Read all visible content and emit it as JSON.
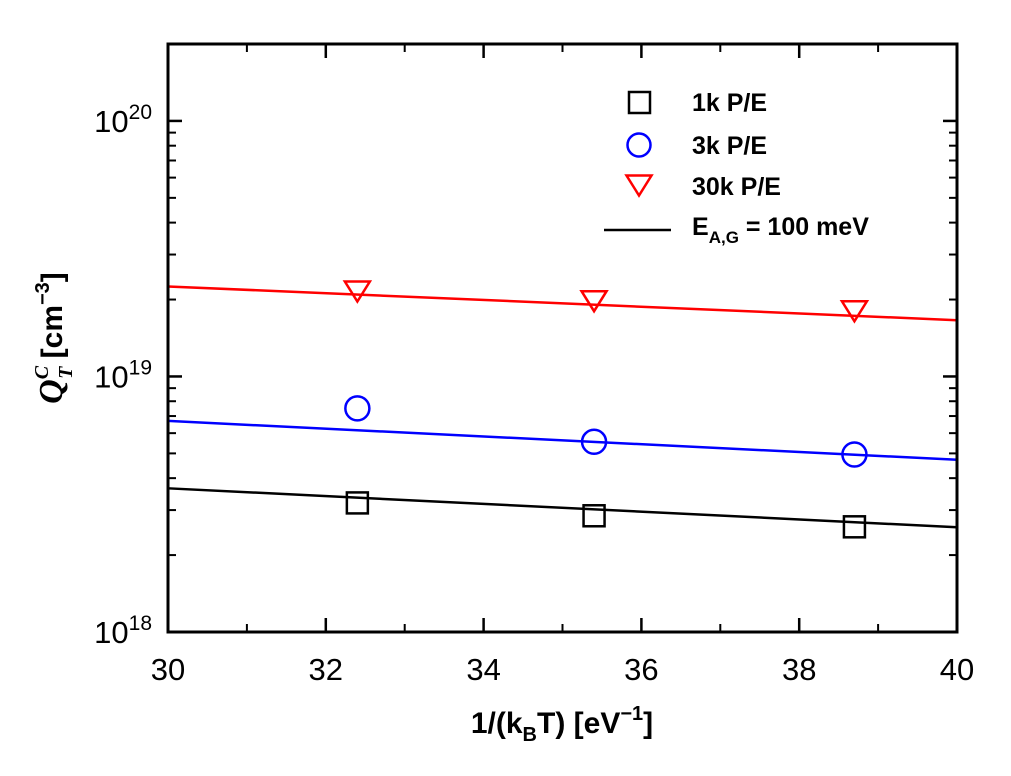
{
  "chart_data": {
    "type": "scatter",
    "title": "",
    "xlabel": {
      "main": "1/(k",
      "sub": "B",
      "after": "T) [eV",
      "sup": "−1",
      "close": "]"
    },
    "ylabel": {
      "symbol": "Q",
      "sup": "C",
      "sub": "T",
      "unit_open": " [cm",
      "unit_sup": "−3",
      "unit_close": "]"
    },
    "xlim": [
      30,
      40
    ],
    "ylim": [
      1e+18,
      2e+20
    ],
    "yscale": "log",
    "x_ticks": [
      30,
      32,
      34,
      36,
      38,
      40
    ],
    "x_tick_labels": [
      "30",
      "32",
      "34",
      "36",
      "38",
      "40"
    ],
    "y_ticks": [
      {
        "value": 1e+18,
        "base": "10",
        "exp": "18"
      },
      {
        "value": 1e+19,
        "base": "10",
        "exp": "19"
      },
      {
        "value": 1e+20,
        "base": "10",
        "exp": "20"
      }
    ],
    "series": [
      {
        "name": "1k P/E",
        "marker": "square",
        "color": "#000000",
        "x": [
          32.4,
          35.4,
          38.7
        ],
        "y": [
          3.2e+18,
          2.85e+18,
          2.58e+18
        ],
        "fit": {
          "x": [
            30,
            40
          ],
          "y": [
            3.65e+18,
            2.57e+18
          ]
        }
      },
      {
        "name": "3k P/E",
        "marker": "circle",
        "color": "#0000ff",
        "x": [
          32.4,
          35.4,
          38.7
        ],
        "y": [
          7.5e+18,
          5.55e+18,
          4.95e+18
        ],
        "fit": {
          "x": [
            30,
            40
          ],
          "y": [
            6.7e+18,
            4.72e+18
          ]
        }
      },
      {
        "name": "30k P/E",
        "marker": "triangle-down",
        "color": "#ff0000",
        "x": [
          32.4,
          35.4,
          38.7
        ],
        "y": [
          2.15e+19,
          1.97e+19,
          1.8e+19
        ],
        "fit": {
          "x": [
            30,
            40
          ],
          "y": [
            2.25e+19,
            1.66e+19
          ]
        }
      }
    ],
    "legend": {
      "position": "top-right",
      "entries": [
        {
          "label": "1k P/E",
          "marker": "square",
          "color": "#000000"
        },
        {
          "label": "3k P/E",
          "marker": "circle",
          "color": "#0000ff"
        },
        {
          "label": "30k P/E",
          "marker": "triangle-down",
          "color": "#ff0000"
        },
        {
          "label": "E",
          "label_sub": "A,G",
          "label_after": " = 100 meV",
          "marker": "line",
          "color": "#000000"
        }
      ]
    }
  }
}
